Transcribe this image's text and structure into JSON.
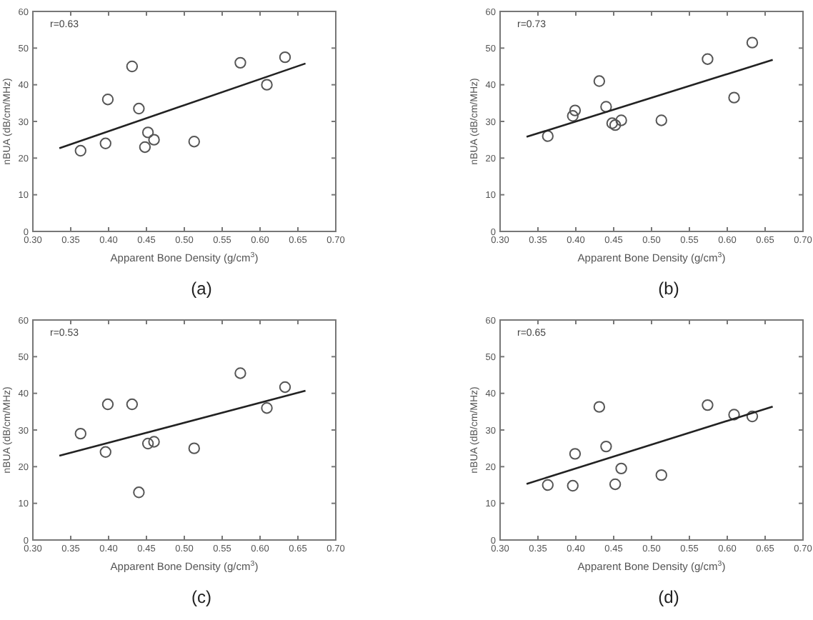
{
  "chart_data": [
    {
      "type": "scatter",
      "title": "(a)",
      "xlabel": "Apparent Bone Density (g/cm$^{3}$)",
      "ylabel": "nBUA (dB/cm/MHz)",
      "annotations": [
        "r=0.63"
      ],
      "xlim": [
        0.3,
        0.7
      ],
      "xticks": [
        {
          "value": 0.3,
          "label": "0.30"
        },
        {
          "value": 0.35,
          "label": "0.35"
        },
        {
          "value": 0.4,
          "label": "0.40"
        },
        {
          "value": 0.45,
          "label": "0.45"
        },
        {
          "value": 0.5,
          "label": "0.50"
        },
        {
          "value": 0.55,
          "label": "0.55"
        },
        {
          "value": 0.6,
          "label": "0.60"
        },
        {
          "value": 0.65,
          "label": "0.65"
        },
        {
          "value": 0.7,
          "label": "0.70"
        }
      ],
      "ylim": [
        0,
        60
      ],
      "yticks": [
        0,
        10,
        20,
        30,
        40,
        50,
        60
      ],
      "grid": false,
      "series": [
        {
          "marker": "circle",
          "color": "#555555",
          "x": [
            0.363,
            0.396,
            0.399,
            0.431,
            0.44,
            0.448,
            0.452,
            0.46,
            0.513,
            0.574,
            0.609,
            0.633
          ],
          "values": [
            22,
            24,
            36,
            45,
            33.5,
            23,
            27,
            25,
            24.5,
            46,
            40,
            47.5
          ]
        },
        {
          "type": "line",
          "line_style": "solid",
          "color": "#222222",
          "x": [
            0.335,
            0.66
          ],
          "values": [
            22.7,
            45.8
          ]
        }
      ]
    },
    {
      "type": "scatter",
      "title": "(b)",
      "xlabel": "Apparent Bone Density (g/cm$^{3}$)",
      "ylabel": "nBUA (dB/cm/MHz)",
      "annotations": [
        "r=0.73"
      ],
      "xlim": [
        0.3,
        0.7
      ],
      "xticks": [
        {
          "value": 0.3,
          "label": "0.30"
        },
        {
          "value": 0.35,
          "label": "0.35"
        },
        {
          "value": 0.4,
          "label": "0.40"
        },
        {
          "value": 0.45,
          "label": "0.45"
        },
        {
          "value": 0.5,
          "label": "0.50"
        },
        {
          "value": 0.55,
          "label": "0.55"
        },
        {
          "value": 0.6,
          "label": "0.60"
        },
        {
          "value": 0.65,
          "label": "0.65"
        },
        {
          "value": 0.7,
          "label": "0.70"
        }
      ],
      "ylim": [
        0,
        60
      ],
      "yticks": [
        0,
        10,
        20,
        30,
        40,
        50,
        60
      ],
      "grid": false,
      "series": [
        {
          "marker": "circle",
          "color": "#555555",
          "x": [
            0.363,
            0.396,
            0.399,
            0.431,
            0.44,
            0.448,
            0.452,
            0.46,
            0.513,
            0.574,
            0.609,
            0.633
          ],
          "values": [
            26,
            31.5,
            33,
            41,
            34,
            29.5,
            29,
            30.3,
            30.3,
            47,
            36.5,
            51.5
          ]
        },
        {
          "type": "line",
          "line_style": "solid",
          "color": "#222222",
          "x": [
            0.335,
            0.66
          ],
          "values": [
            25.8,
            46.8
          ]
        }
      ]
    },
    {
      "type": "scatter",
      "title": "(c)",
      "xlabel": "Apparent Bone Density (g/cm$^{3}$)",
      "ylabel": "nBUA (dB/cm/MHz)",
      "annotations": [
        "r=0.53"
      ],
      "xlim": [
        0.3,
        0.7
      ],
      "xticks": [
        {
          "value": 0.3,
          "label": "0.30"
        },
        {
          "value": 0.35,
          "label": "0.35"
        },
        {
          "value": 0.4,
          "label": "0.40"
        },
        {
          "value": 0.45,
          "label": "0.45"
        },
        {
          "value": 0.5,
          "label": "0.50"
        },
        {
          "value": 0.55,
          "label": "0.55"
        },
        {
          "value": 0.6,
          "label": "0.60"
        },
        {
          "value": 0.65,
          "label": "0.65"
        },
        {
          "value": 0.7,
          "label": "0.70"
        }
      ],
      "ylim": [
        0,
        60
      ],
      "yticks": [
        0,
        10,
        20,
        30,
        40,
        50,
        60
      ],
      "grid": false,
      "series": [
        {
          "marker": "circle",
          "color": "#555555",
          "x": [
            0.363,
            0.396,
            0.399,
            0.431,
            0.44,
            0.452,
            0.46,
            0.513,
            0.574,
            0.609,
            0.633
          ],
          "values": [
            29,
            24,
            37,
            37,
            13,
            26.3,
            26.8,
            25,
            45.5,
            36,
            41.7
          ]
        },
        {
          "type": "line",
          "line_style": "solid",
          "color": "#222222",
          "x": [
            0.335,
            0.66
          ],
          "values": [
            23,
            40.7
          ]
        }
      ]
    },
    {
      "type": "scatter",
      "title": "(d)",
      "xlabel": "Apparent Bone Density (g/cm$^{3}$)",
      "ylabel": "nBUA (dB/cm/MHz)",
      "annotations": [
        "r=0.65"
      ],
      "xlim": [
        0.3,
        0.7
      ],
      "xticks": [
        {
          "value": 0.3,
          "label": "0.30"
        },
        {
          "value": 0.35,
          "label": "0.35"
        },
        {
          "value": 0.4,
          "label": "0.40"
        },
        {
          "value": 0.45,
          "label": "0.45"
        },
        {
          "value": 0.5,
          "label": "0.50"
        },
        {
          "value": 0.55,
          "label": "0.55"
        },
        {
          "value": 0.6,
          "label": "0.60"
        },
        {
          "value": 0.65,
          "label": "0.65"
        },
        {
          "value": 0.7,
          "label": "0.70"
        }
      ],
      "ylim": [
        0,
        60
      ],
      "yticks": [
        0,
        10,
        20,
        30,
        40,
        50,
        60
      ],
      "grid": false,
      "series": [
        {
          "marker": "circle",
          "color": "#555555",
          "x": [
            0.363,
            0.396,
            0.399,
            0.431,
            0.44,
            0.452,
            0.46,
            0.513,
            0.574,
            0.609,
            0.633
          ],
          "values": [
            15,
            14.8,
            23.5,
            36.3,
            25.5,
            15.2,
            19.5,
            17.7,
            36.8,
            34.2,
            33.7
          ]
        },
        {
          "type": "line",
          "line_style": "solid",
          "color": "#222222",
          "x": [
            0.335,
            0.66
          ],
          "values": [
            15.3,
            36.4
          ]
        }
      ]
    }
  ]
}
